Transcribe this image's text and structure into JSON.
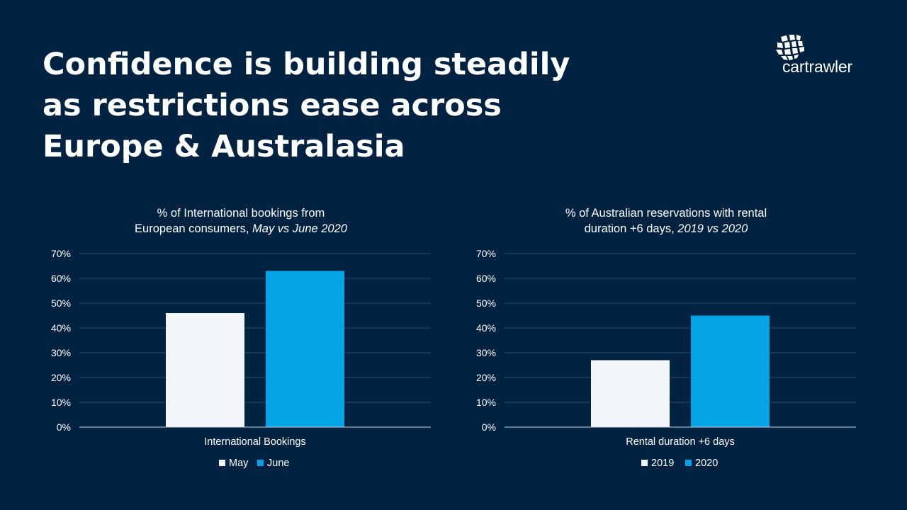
{
  "slide": {
    "title_lines": [
      "Confidence is building steadily",
      "as restrictions ease across",
      "Europe & Australasia"
    ],
    "logo_text": "cartrawler"
  },
  "colors": {
    "background": "#012341",
    "series_light": "#f2f5f9",
    "series_blue": "#04a3e6"
  },
  "chart_titles": [
    {
      "line1": "% of International bookings from",
      "line2_plain": "European consumers, ",
      "line2_italic": "May vs June 2020"
    },
    {
      "line1": "% of Australian reservations with rental",
      "line2_plain": "duration +6 days, ",
      "line2_italic": "2019 vs 2020"
    }
  ],
  "chart_data": [
    {
      "type": "bar",
      "title": "% of International bookings from European consumers, May vs June 2020",
      "categories": [
        "International Bookings"
      ],
      "series": [
        {
          "name": "May",
          "values": [
            46
          ],
          "color": "#f2f5f9"
        },
        {
          "name": "June",
          "values": [
            63
          ],
          "color": "#04a3e6"
        }
      ],
      "xlabel": "International Bookings",
      "ylabel": "",
      "ylim": [
        0,
        70
      ],
      "yticks": [
        "0%",
        "10%",
        "20%",
        "30%",
        "40%",
        "50%",
        "60%",
        "70%"
      ],
      "grid": true,
      "legend": "bottom"
    },
    {
      "type": "bar",
      "title": "% of Australian reservations with rental duration +6 days, 2019 vs 2020",
      "categories": [
        "Rental duration +6 days"
      ],
      "series": [
        {
          "name": "2019",
          "values": [
            27
          ],
          "color": "#f2f5f9"
        },
        {
          "name": "2020",
          "values": [
            45
          ],
          "color": "#04a3e6"
        }
      ],
      "xlabel": "Rental duration +6 days",
      "ylabel": "",
      "ylim": [
        0,
        70
      ],
      "yticks": [
        "0%",
        "10%",
        "20%",
        "30%",
        "40%",
        "50%",
        "60%",
        "70%"
      ],
      "grid": true,
      "legend": "bottom"
    }
  ]
}
